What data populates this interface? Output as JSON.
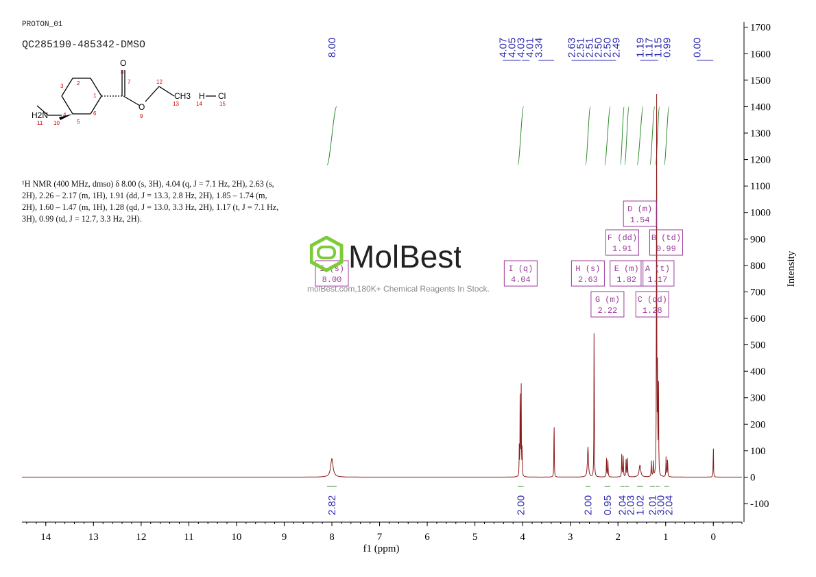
{
  "header": {
    "experiment": "PROTON_01",
    "sample": "QC285190-485342-DMSO"
  },
  "nmr_description": "¹H NMR (400 MHz, dmso) δ 8.00 (s, 3H), 4.04 (q, J = 7.1 Hz, 2H), 2.63 (s, 2H), 2.26 – 2.17 (m, 1H), 1.91 (dd, J = 13.3, 2.8 Hz, 2H), 1.85 – 1.74 (m, 2H), 1.60 – 1.47 (m, 1H), 1.28 (qd, J = 13.0, 3.3 Hz, 2H), 1.17 (t, J = 7.1 Hz, 3H), 0.99 (td, J = 12.7, 3.3 Hz, 2H).",
  "watermark": {
    "brand": "MolBest",
    "tagline": "molBest.com,180K+ Chemical Reagents In Stock."
  },
  "structure": {
    "atom_labels": [
      "O",
      "8",
      "7",
      "1",
      "2",
      "3",
      "4",
      "5",
      "6",
      "O",
      "9",
      "12",
      "CH3",
      "13",
      "H",
      "14",
      "Cl",
      "15",
      "H2N",
      "11",
      "10"
    ],
    "colors": {
      "bond": "#000000",
      "oxygen": "#000000",
      "number": "#cc0000"
    }
  },
  "colors": {
    "spectrum": "#8b1a1a",
    "integral": "#2e8b2e",
    "peak_label": "#2b2bb0",
    "multiplet_box": "#9b3a9b",
    "axis": "#000000"
  },
  "chart_data": {
    "type": "line",
    "xlabel": "f1 (ppm)",
    "ylabel": "Intensity",
    "xlim": [
      14.5,
      -0.6
    ],
    "ylim": [
      -170,
      1720
    ],
    "x_ticks": [
      14,
      13,
      12,
      11,
      10,
      9,
      8,
      7,
      6,
      5,
      4,
      3,
      2,
      1,
      0
    ],
    "y_ticks": [
      -100,
      0,
      100,
      200,
      300,
      400,
      500,
      600,
      700,
      800,
      900,
      1000,
      1100,
      1200,
      1300,
      1400,
      1500,
      1600,
      1700
    ],
    "series": [
      {
        "peaks": [
          {
            "ppm": 8.0,
            "height": 70,
            "width": 0.03
          },
          {
            "ppm": 4.07,
            "height": 110,
            "width": 0.004
          },
          {
            "ppm": 4.05,
            "height": 370,
            "width": 0.004
          },
          {
            "ppm": 4.03,
            "height": 370,
            "width": 0.004
          },
          {
            "ppm": 4.01,
            "height": 110,
            "width": 0.004
          },
          {
            "ppm": 3.34,
            "height": 255,
            "width": 0.004
          },
          {
            "ppm": 2.63,
            "height": 115,
            "width": 0.012
          },
          {
            "ppm": 2.5,
            "height": 600,
            "width": 0.004
          },
          {
            "ppm": 2.24,
            "height": 70,
            "width": 0.005
          },
          {
            "ppm": 2.21,
            "height": 65,
            "width": 0.005
          },
          {
            "ppm": 1.92,
            "height": 85,
            "width": 0.005
          },
          {
            "ppm": 1.89,
            "height": 85,
            "width": 0.005
          },
          {
            "ppm": 1.83,
            "height": 80,
            "width": 0.005
          },
          {
            "ppm": 1.8,
            "height": 75,
            "width": 0.005
          },
          {
            "ppm": 1.54,
            "height": 45,
            "width": 0.02
          },
          {
            "ppm": 1.3,
            "height": 60,
            "width": 0.005
          },
          {
            "ppm": 1.26,
            "height": 60,
            "width": 0.005
          },
          {
            "ppm": 1.19,
            "height": 1560,
            "width": 0.004
          },
          {
            "ppm": 1.17,
            "height": 410,
            "width": 0.004
          },
          {
            "ppm": 1.15,
            "height": 410,
            "width": 0.004
          },
          {
            "ppm": 0.99,
            "height": 80,
            "width": 0.005
          },
          {
            "ppm": 0.96,
            "height": 75,
            "width": 0.005
          },
          {
            "ppm": 0.0,
            "height": 130,
            "width": 0.004
          }
        ]
      }
    ],
    "peak_labels": [
      "8.00",
      "4.07",
      "4.05",
      "4.03",
      "4.01",
      "3.34",
      "2.63",
      "2.51",
      "2.51",
      "2.50",
      "2.50",
      "2.49",
      "1.19",
      "1.17",
      "1.15",
      "0.99",
      "0.00"
    ],
    "peak_label_ppm": [
      8.0,
      4.07,
      4.05,
      4.03,
      4.01,
      3.34,
      2.63,
      2.51,
      2.51,
      2.5,
      2.5,
      2.49,
      1.19,
      1.17,
      1.15,
      0.99,
      0.0
    ],
    "multiplets": [
      {
        "label": "I (q)",
        "ppm": "4.04",
        "center": 4.04
      },
      {
        "label": "H (s)",
        "ppm": "2.63",
        "center": 2.63
      },
      {
        "label": "G (m)",
        "ppm": "2.22",
        "center": 2.22
      },
      {
        "label": "F (dd)",
        "ppm": "1.91",
        "center": 1.91
      },
      {
        "label": "E (m)",
        "ppm": "1.82",
        "center": 1.82
      },
      {
        "label": "D (m)",
        "ppm": "1.54",
        "center": 1.54
      },
      {
        "label": "C (qd)",
        "ppm": "1.28",
        "center": 1.28
      },
      {
        "label": "A (t)",
        "ppm": "1.17",
        "center": 1.17
      },
      {
        "label": "B (td)",
        "ppm": "0.99",
        "center": 0.99
      },
      {
        "label": "I (s)",
        "ppm": "8.00",
        "center": 8.0
      }
    ],
    "integrals": [
      {
        "value": "2.82",
        "from": 8.1,
        "to": 7.9
      },
      {
        "value": "2.00",
        "from": 4.1,
        "to": 3.98
      },
      {
        "value": "2.00",
        "from": 2.68,
        "to": 2.58
      },
      {
        "value": "0.95",
        "from": 2.28,
        "to": 2.16
      },
      {
        "value": "2.04",
        "from": 1.95,
        "to": 1.87
      },
      {
        "value": "2.03",
        "from": 1.86,
        "to": 1.77
      },
      {
        "value": "1.02",
        "from": 1.6,
        "to": 1.47
      },
      {
        "value": "2.01",
        "from": 1.33,
        "to": 1.23
      },
      {
        "value": "3.00",
        "from": 1.21,
        "to": 1.13
      },
      {
        "value": "2.04",
        "from": 1.03,
        "to": 0.93
      }
    ]
  }
}
